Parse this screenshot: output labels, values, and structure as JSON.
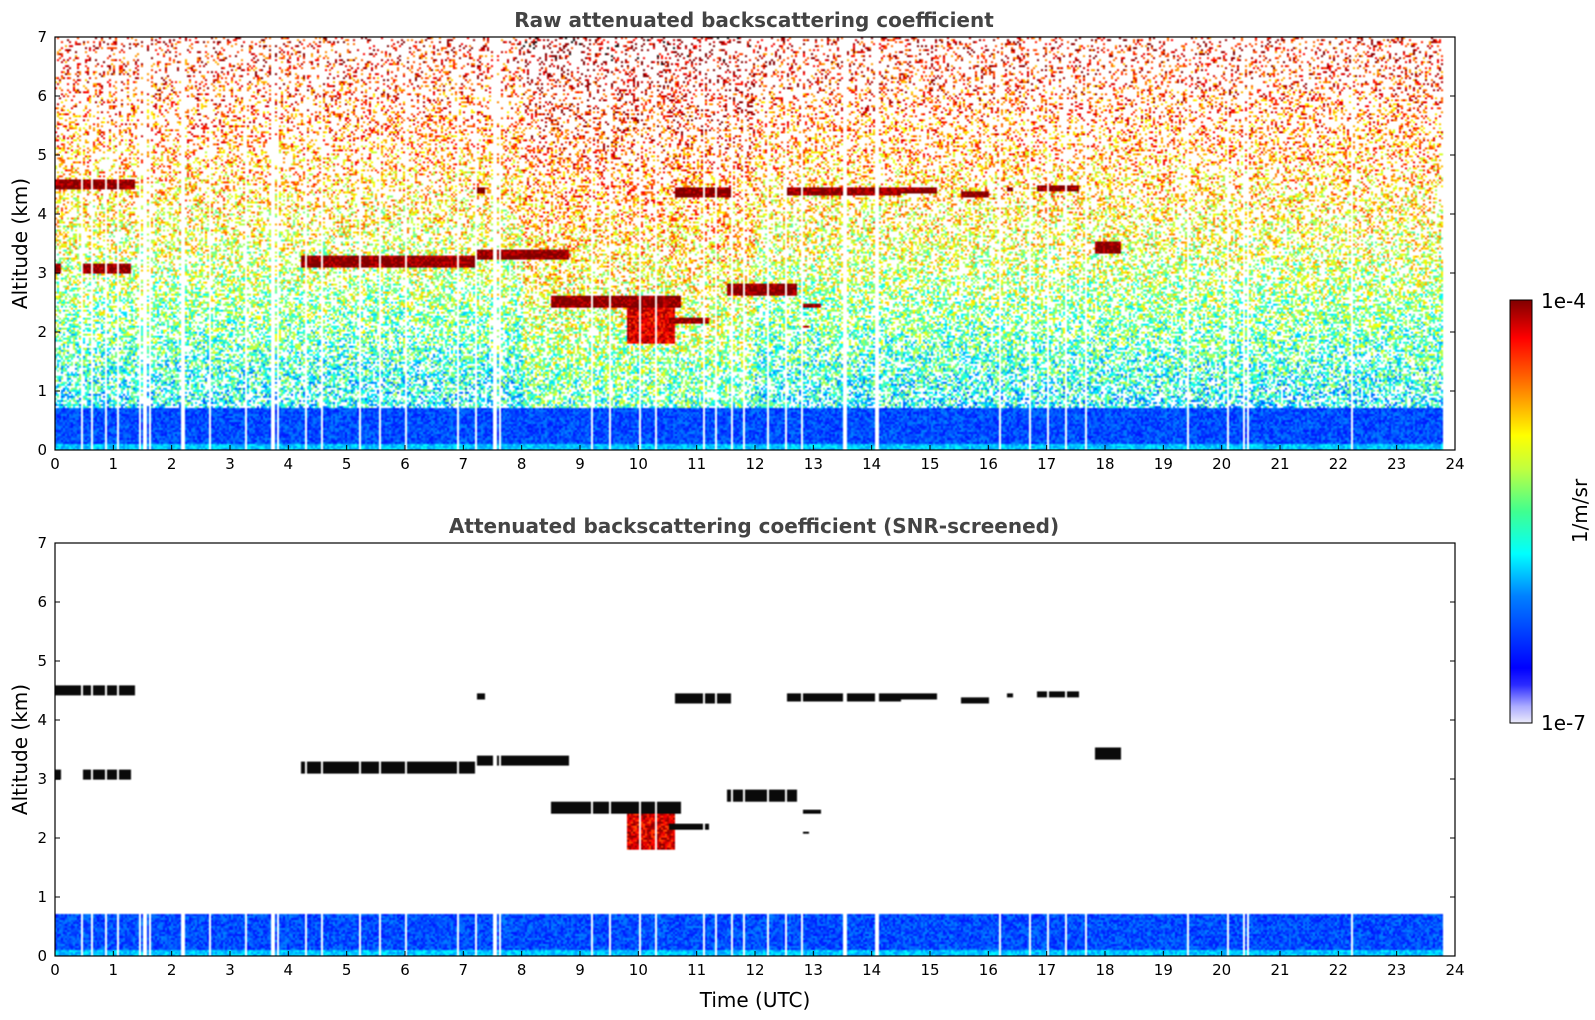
{
  "chart_data": [
    {
      "type": "heatmap",
      "title": "Raw attenuated backscattering coefficient",
      "xlabel": "",
      "ylabel": "Altitude (km)",
      "xlim": [
        0,
        24
      ],
      "ylim": [
        0,
        7
      ],
      "x_ticks": [
        "0",
        "1",
        "2",
        "3",
        "4",
        "5",
        "6",
        "7",
        "8",
        "9",
        "10",
        "11",
        "12",
        "13",
        "14",
        "15",
        "16",
        "17",
        "18",
        "19",
        "20",
        "21",
        "22",
        "23",
        "24"
      ],
      "y_ticks": [
        "0",
        "1",
        "2",
        "3",
        "4",
        "5",
        "6",
        "7"
      ],
      "data_end_time": 23.8,
      "background_noise": true,
      "boundary_layer": {
        "top_km": 0.7,
        "level": 0.2
      },
      "data_gaps_utc": [
        0.45,
        0.6,
        0.85,
        1.05,
        1.45,
        1.5,
        1.55,
        1.6,
        2.15,
        2.2,
        2.65,
        3.25,
        3.7,
        3.75,
        3.8,
        4.3,
        4.55,
        5.2,
        5.55,
        6.0,
        6.9,
        7.2,
        7.5,
        7.55,
        7.6,
        9.2,
        9.5,
        10.0,
        10.3,
        11.1,
        11.3,
        11.6,
        11.8,
        12.2,
        12.5,
        12.8,
        13.5,
        13.55,
        14.05,
        14.1,
        16.2,
        16.7,
        17.0,
        17.3,
        17.65,
        19.4,
        20.1,
        20.35,
        20.45,
        22.2
      ],
      "cloud_layers": [
        {
          "t0": 0.0,
          "t1": 1.35,
          "alt": 4.5,
          "th": 0.16,
          "level": 1.0
        },
        {
          "t0": 7.2,
          "t1": 7.35,
          "alt": 4.4,
          "th": 0.1,
          "level": 1.0
        },
        {
          "t0": 10.6,
          "t1": 11.6,
          "alt": 4.38,
          "th": 0.16,
          "level": 1.0
        },
        {
          "t0": 12.5,
          "t1": 14.5,
          "alt": 4.38,
          "th": 0.14,
          "level": 1.0
        },
        {
          "t0": 14.5,
          "t1": 15.1,
          "alt": 4.4,
          "th": 0.1,
          "level": 1.0
        },
        {
          "t0": 15.5,
          "t1": 16.0,
          "alt": 4.35,
          "th": 0.1,
          "level": 1.0
        },
        {
          "t0": 16.3,
          "t1": 16.4,
          "alt": 4.42,
          "th": 0.06,
          "level": 1.0
        },
        {
          "t0": 16.8,
          "t1": 17.55,
          "alt": 4.45,
          "th": 0.1,
          "level": 1.0
        },
        {
          "t0": 0.0,
          "t1": 0.1,
          "alt": 3.07,
          "th": 0.16,
          "level": 1.0
        },
        {
          "t0": 0.45,
          "t1": 1.3,
          "alt": 3.07,
          "th": 0.16,
          "level": 1.0
        },
        {
          "t0": 4.2,
          "t1": 7.2,
          "alt": 3.2,
          "th": 0.2,
          "level": 1.0
        },
        {
          "t0": 7.2,
          "t1": 8.8,
          "alt": 3.32,
          "th": 0.16,
          "level": 1.0
        },
        {
          "t0": 17.8,
          "t1": 18.25,
          "alt": 3.42,
          "th": 0.2,
          "level": 1.0
        },
        {
          "t0": 8.5,
          "t1": 10.7,
          "alt": 2.5,
          "th": 0.2,
          "level": 1.0
        },
        {
          "t0": 9.8,
          "t1": 10.6,
          "alt": 2.1,
          "th": 0.6,
          "level": 0.9
        },
        {
          "t0": 10.5,
          "t1": 11.2,
          "alt": 2.2,
          "th": 0.1,
          "level": 1.0
        },
        {
          "t0": 11.5,
          "t1": 12.7,
          "alt": 2.72,
          "th": 0.2,
          "level": 1.0
        },
        {
          "t0": 12.8,
          "t1": 13.1,
          "alt": 2.45,
          "th": 0.06,
          "level": 1.0
        },
        {
          "t0": 12.8,
          "t1": 12.9,
          "alt": 2.08,
          "th": 0.06,
          "level": 1.0
        }
      ]
    },
    {
      "type": "heatmap",
      "title": "Attenuated backscattering coefficient (SNR-screened)",
      "xlabel": "Time (UTC)",
      "ylabel": "Altitude (km)",
      "xlim": [
        0,
        24
      ],
      "ylim": [
        0,
        7
      ],
      "x_ticks": [
        "0",
        "1",
        "2",
        "3",
        "4",
        "5",
        "6",
        "7",
        "8",
        "9",
        "10",
        "11",
        "12",
        "13",
        "14",
        "15",
        "16",
        "17",
        "18",
        "19",
        "20",
        "21",
        "22",
        "23",
        "24"
      ],
      "y_ticks": [
        "0",
        "1",
        "2",
        "3",
        "4",
        "5",
        "6",
        "7"
      ],
      "data_end_time": 23.8,
      "background_noise": false,
      "boundary_layer": {
        "top_km": 0.7,
        "level": 0.2
      },
      "data_gaps_utc": [
        0.45,
        0.6,
        0.85,
        1.05,
        1.45,
        1.5,
        1.55,
        1.6,
        2.15,
        2.2,
        2.65,
        3.25,
        3.7,
        3.75,
        3.8,
        4.3,
        4.55,
        5.2,
        5.55,
        6.0,
        6.9,
        7.2,
        7.5,
        7.55,
        7.6,
        9.2,
        9.5,
        10.0,
        10.3,
        11.1,
        11.3,
        11.6,
        11.8,
        12.2,
        12.5,
        12.8,
        13.5,
        13.55,
        14.05,
        14.1,
        16.2,
        16.7,
        17.0,
        17.3,
        17.65,
        19.4,
        20.1,
        20.35,
        20.45,
        22.2
      ],
      "cloud_layers": [
        {
          "t0": 0.0,
          "t1": 1.35,
          "alt": 4.5,
          "th": 0.16,
          "level": 1.2
        },
        {
          "t0": 7.2,
          "t1": 7.35,
          "alt": 4.4,
          "th": 0.1,
          "level": 1.2
        },
        {
          "t0": 10.6,
          "t1": 11.6,
          "alt": 4.38,
          "th": 0.16,
          "level": 1.2
        },
        {
          "t0": 12.5,
          "t1": 14.5,
          "alt": 4.38,
          "th": 0.14,
          "level": 1.2
        },
        {
          "t0": 14.5,
          "t1": 15.1,
          "alt": 4.4,
          "th": 0.1,
          "level": 1.2
        },
        {
          "t0": 15.5,
          "t1": 16.0,
          "alt": 4.35,
          "th": 0.1,
          "level": 1.2
        },
        {
          "t0": 16.3,
          "t1": 16.4,
          "alt": 4.42,
          "th": 0.06,
          "level": 1.2
        },
        {
          "t0": 16.8,
          "t1": 17.55,
          "alt": 4.45,
          "th": 0.1,
          "level": 1.2
        },
        {
          "t0": 0.0,
          "t1": 0.1,
          "alt": 3.07,
          "th": 0.16,
          "level": 1.2
        },
        {
          "t0": 0.45,
          "t1": 1.3,
          "alt": 3.07,
          "th": 0.16,
          "level": 1.2
        },
        {
          "t0": 4.2,
          "t1": 7.2,
          "alt": 3.2,
          "th": 0.2,
          "level": 1.2
        },
        {
          "t0": 7.2,
          "t1": 8.8,
          "alt": 3.32,
          "th": 0.16,
          "level": 1.2
        },
        {
          "t0": 17.8,
          "t1": 18.25,
          "alt": 3.42,
          "th": 0.2,
          "level": 1.2
        },
        {
          "t0": 8.5,
          "t1": 10.7,
          "alt": 2.5,
          "th": 0.2,
          "level": 1.2
        },
        {
          "t0": 9.8,
          "t1": 10.6,
          "alt": 2.1,
          "th": 0.6,
          "level": 0.9
        },
        {
          "t0": 10.5,
          "t1": 11.2,
          "alt": 2.2,
          "th": 0.1,
          "level": 1.2
        },
        {
          "t0": 11.5,
          "t1": 12.7,
          "alt": 2.72,
          "th": 0.2,
          "level": 1.2
        },
        {
          "t0": 12.8,
          "t1": 13.1,
          "alt": 2.45,
          "th": 0.06,
          "level": 1.2
        },
        {
          "t0": 12.8,
          "t1": 12.9,
          "alt": 2.08,
          "th": 0.06,
          "level": 1.2
        }
      ]
    }
  ],
  "colorbar": {
    "max_label": "1e-4",
    "min_label": "1e-7",
    "unit_label": "1/m/sr",
    "colormap": "jet"
  }
}
